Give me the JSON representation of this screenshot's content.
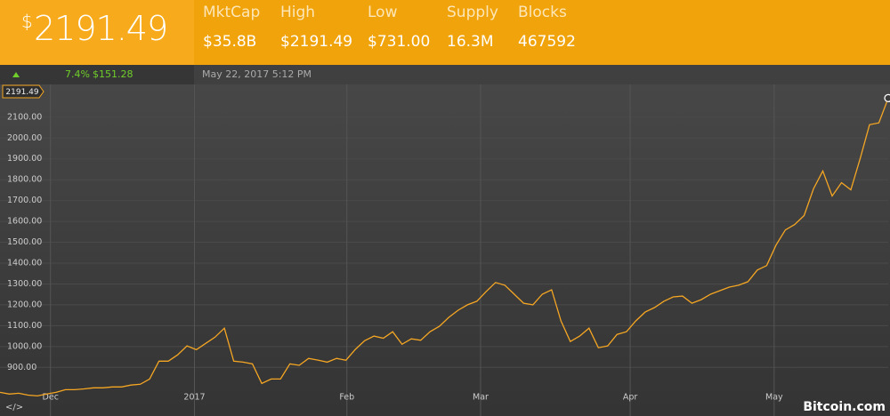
{
  "header": {
    "price_symbol": "$",
    "price": "2191.49",
    "stats": [
      {
        "label": "MktCap",
        "value": "$35.8B"
      },
      {
        "label": "High",
        "value": "$2191.49"
      },
      {
        "label": "Low",
        "value": "$731.00"
      },
      {
        "label": "Supply",
        "value": "16.3M"
      },
      {
        "label": "Blocks",
        "value": "467592"
      }
    ]
  },
  "ticker": {
    "change_pct": "7.4%",
    "change_amt": "$151.28",
    "timestamp": "May 22, 2017 5:12 PM"
  },
  "footer": {
    "embed": "</>",
    "brand": "Bitcoin.com"
  },
  "chart_data": {
    "type": "line",
    "color": "#f5a623",
    "grid": true,
    "values": [
      780,
      772,
      776,
      767,
      763,
      772,
      780,
      793,
      793,
      797,
      802,
      802,
      806,
      806,
      815,
      819,
      844,
      930,
      930,
      960,
      1003,
      985,
      1015,
      1045,
      1088,
      930,
      925,
      917,
      823,
      844,
      844,
      917,
      910,
      943,
      935,
      925,
      943,
      934,
      986,
      1028,
      1050,
      1040,
      1071,
      1011,
      1037,
      1030,
      1071,
      1097,
      1140,
      1174,
      1200,
      1217,
      1264,
      1307,
      1294,
      1251,
      1208,
      1200,
      1251,
      1272,
      1123,
      1024,
      1050,
      1088,
      994,
      1003,
      1058,
      1071,
      1123,
      1165,
      1187,
      1217,
      1238,
      1242,
      1208,
      1225,
      1251,
      1268,
      1285,
      1294,
      1311,
      1367,
      1388,
      1486,
      1559,
      1585,
      1628,
      1756,
      1842,
      1722,
      1786,
      1752,
      1902,
      2064,
      2073,
      2191.49
    ],
    "xlim": [
      0,
      95
    ],
    "xticks": [
      {
        "value": 5.4,
        "label": "Dec"
      },
      {
        "value": 20.8,
        "label": "2017"
      },
      {
        "value": 37.1,
        "label": "Feb"
      },
      {
        "value": 51.4,
        "label": "Mar"
      },
      {
        "value": 67.4,
        "label": "Apr"
      },
      {
        "value": 82.8,
        "label": "May"
      }
    ],
    "ylim": [
      735,
      2257
    ],
    "yticks": [
      {
        "value": 900,
        "label": "900.00"
      },
      {
        "value": 1000,
        "label": "1000.00"
      },
      {
        "value": 1100,
        "label": "1100.00"
      },
      {
        "value": 1200,
        "label": "1200.00"
      },
      {
        "value": 1300,
        "label": "1300.00"
      },
      {
        "value": 1400,
        "label": "1400.00"
      },
      {
        "value": 1500,
        "label": "1500.00"
      },
      {
        "value": 1600,
        "label": "1600.00"
      },
      {
        "value": 1700,
        "label": "1700.00"
      },
      {
        "value": 1800,
        "label": "1800.00"
      },
      {
        "value": 1900,
        "label": "1900.00"
      },
      {
        "value": 2000,
        "label": "2000.00"
      },
      {
        "value": 2100,
        "label": "2100.00"
      }
    ]
  }
}
